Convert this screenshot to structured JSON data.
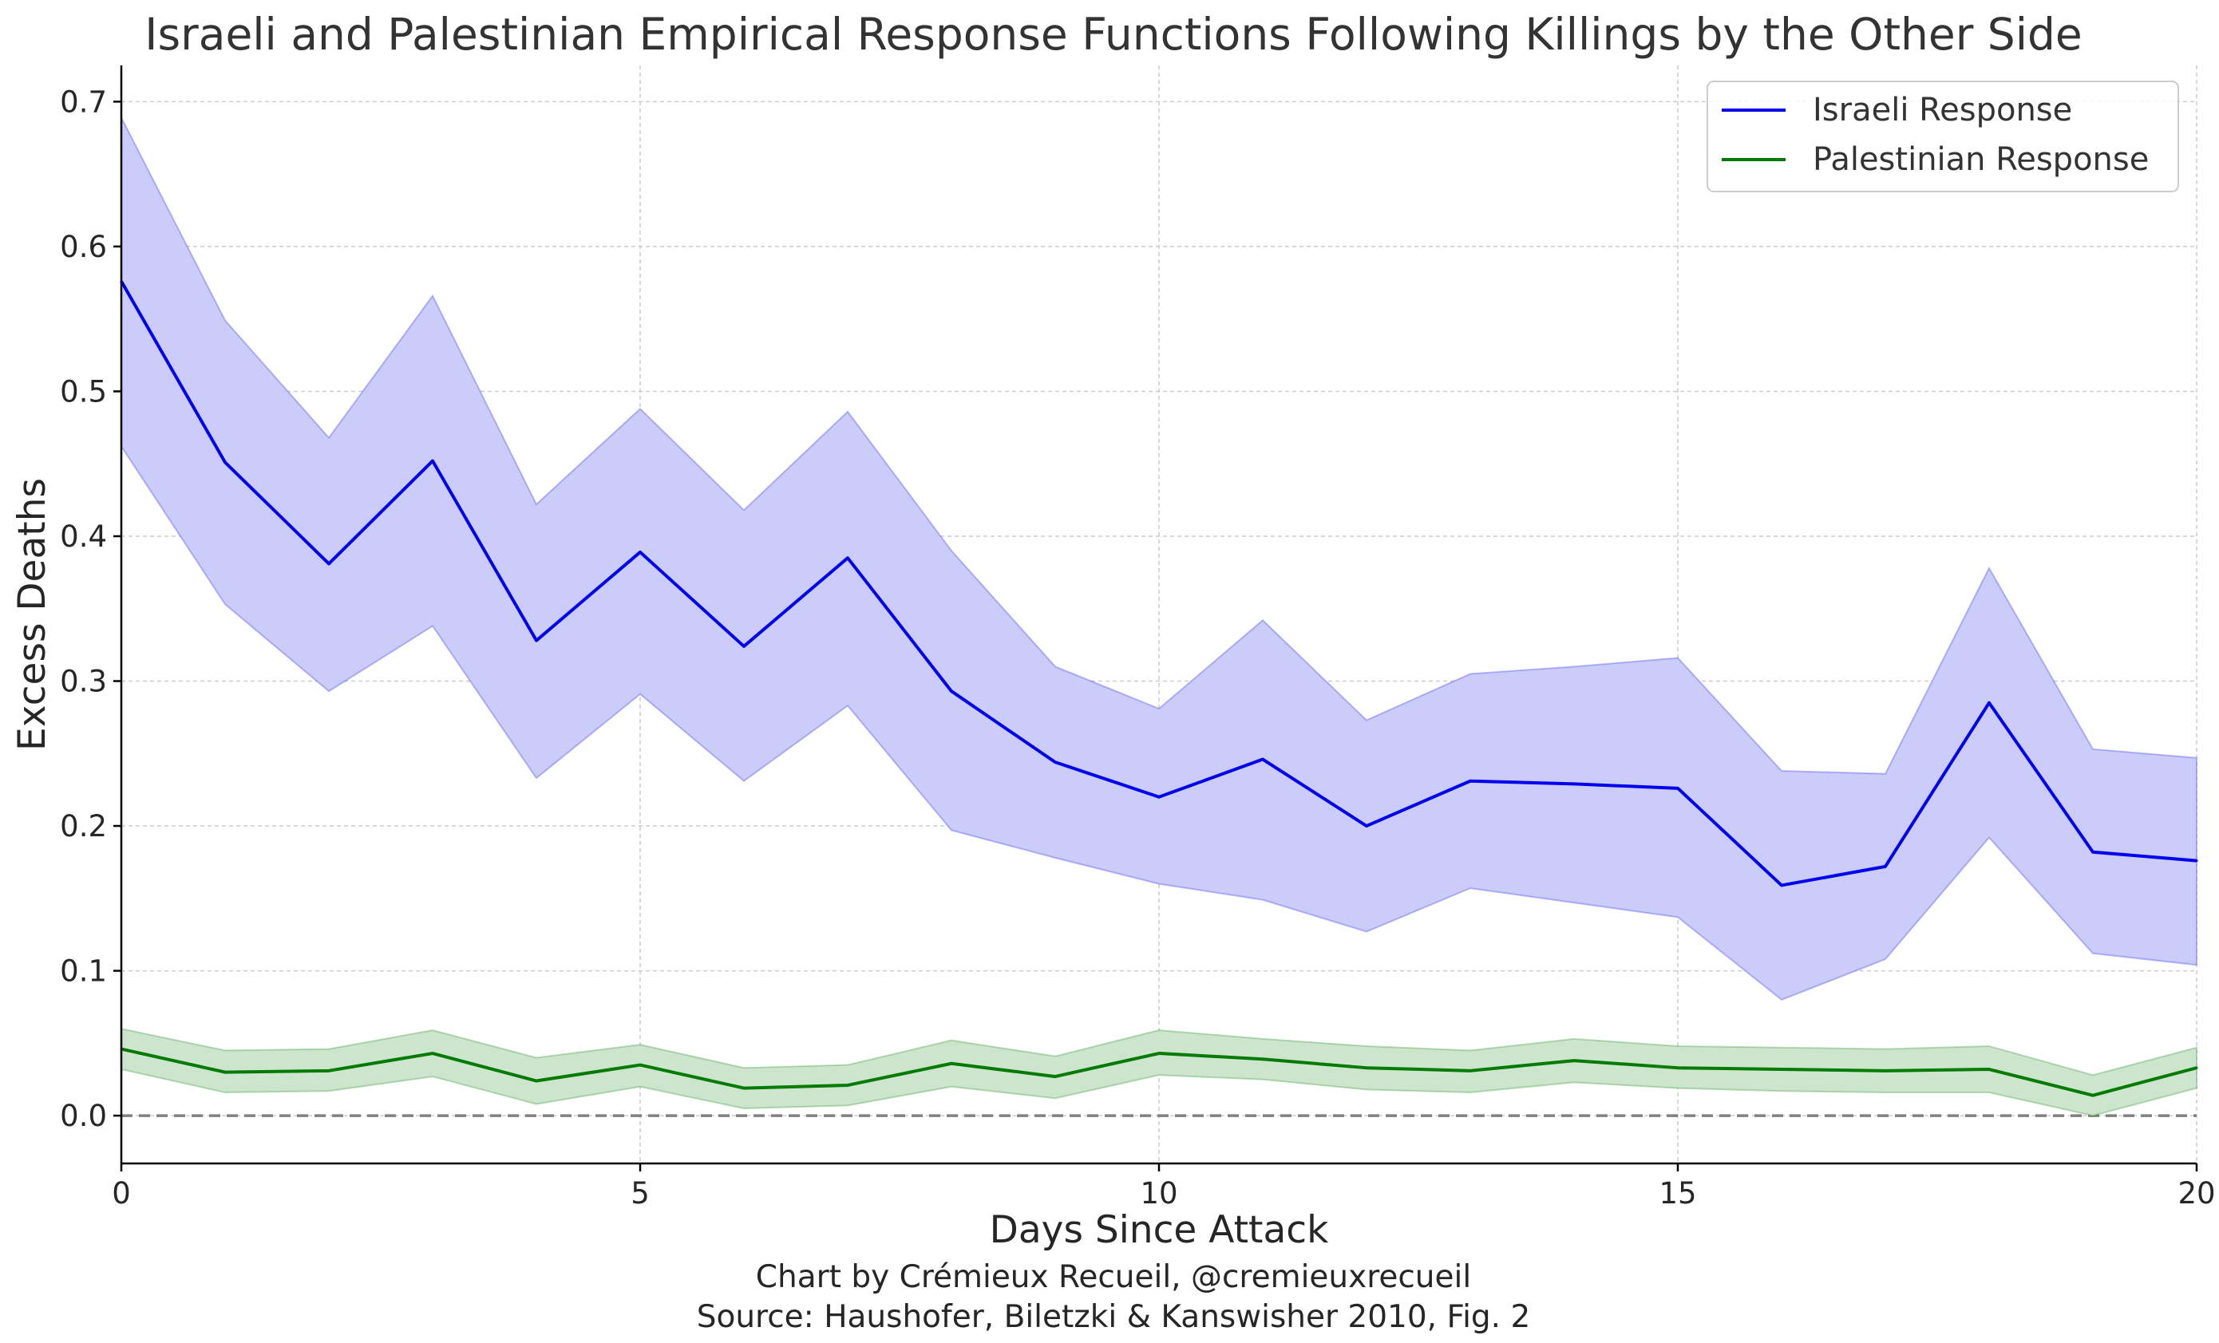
{
  "chart_data": {
    "type": "line",
    "title": "Israeli and Palestinian Empirical Response Functions Following Killings by the Other Side",
    "xlabel": "Days Since Attack",
    "ylabel": "Excess Deaths",
    "xlim": [
      0,
      20
    ],
    "ylim": [
      -0.033,
      0.725
    ],
    "xticks": [
      0,
      5,
      10,
      15,
      20
    ],
    "yticks": [
      0.0,
      0.1,
      0.2,
      0.3,
      0.4,
      0.5,
      0.6,
      0.7
    ],
    "ytick_labels": [
      "0.0",
      "0.1",
      "0.2",
      "0.3",
      "0.4",
      "0.5",
      "0.6",
      "0.7"
    ],
    "grid": true,
    "legend_position": "top-right",
    "reference_line": 0,
    "x": [
      0,
      1,
      2,
      3,
      4,
      5,
      6,
      7,
      8,
      9,
      10,
      11,
      12,
      13,
      14,
      15,
      16,
      17,
      18,
      19,
      20
    ],
    "series": [
      {
        "name": "Israeli Response",
        "color": "#0000ee",
        "band_color": "#ccccfa",
        "values": [
          0.576,
          0.451,
          0.381,
          0.452,
          0.328,
          0.389,
          0.324,
          0.385,
          0.293,
          0.244,
          0.22,
          0.246,
          0.2,
          0.231,
          0.229,
          0.226,
          0.159,
          0.172,
          0.285,
          0.182,
          0.176
        ],
        "upper": [
          0.689,
          0.549,
          0.468,
          0.566,
          0.422,
          0.488,
          0.418,
          0.486,
          0.39,
          0.31,
          0.281,
          0.342,
          0.273,
          0.305,
          0.31,
          0.316,
          0.238,
          0.236,
          0.378,
          0.253,
          0.247
        ],
        "lower": [
          0.462,
          0.353,
          0.293,
          0.338,
          0.233,
          0.291,
          0.231,
          0.283,
          0.197,
          0.178,
          0.16,
          0.149,
          0.127,
          0.157,
          0.147,
          0.137,
          0.08,
          0.108,
          0.192,
          0.112,
          0.104
        ]
      },
      {
        "name": "Palestinian Response",
        "color": "#007a00",
        "band_color": "#cce5cc",
        "values": [
          0.046,
          0.03,
          0.031,
          0.043,
          0.024,
          0.035,
          0.019,
          0.021,
          0.036,
          0.027,
          0.043,
          0.039,
          0.033,
          0.031,
          0.038,
          0.033,
          0.032,
          0.031,
          0.032,
          0.014,
          0.033
        ],
        "upper": [
          0.06,
          0.045,
          0.046,
          0.059,
          0.04,
          0.049,
          0.033,
          0.035,
          0.052,
          0.041,
          0.059,
          0.053,
          0.048,
          0.045,
          0.053,
          0.048,
          0.047,
          0.046,
          0.048,
          0.028,
          0.047
        ],
        "lower": [
          0.032,
          0.016,
          0.017,
          0.027,
          0.008,
          0.02,
          0.005,
          0.007,
          0.02,
          0.012,
          0.028,
          0.025,
          0.018,
          0.016,
          0.023,
          0.019,
          0.017,
          0.016,
          0.016,
          0.0,
          0.019
        ]
      }
    ]
  },
  "credits": {
    "line1": "Chart by Crémieux Recueil, @cremieuxrecueil",
    "line2": "Source: Haushofer, Biletzki & Kanswisher 2010, Fig. 2"
  },
  "colors": {
    "grid": "#cccccc",
    "zero_line": "#808080",
    "axis": "#000000"
  }
}
